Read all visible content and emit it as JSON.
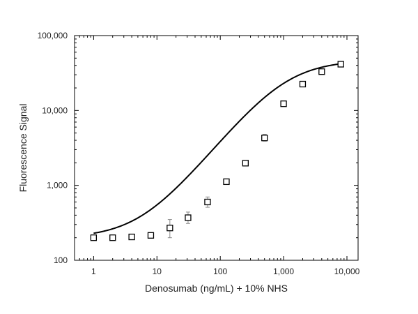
{
  "chart_data": {
    "type": "scatter",
    "title": "",
    "xlabel": "Denosumab (ng/mL) + 10% NHS",
    "ylabel": "Fluorescence Signal",
    "x_scale": "log",
    "y_scale": "log",
    "xlim": [
      0.5,
      15000
    ],
    "ylim": [
      100,
      100000
    ],
    "x_ticks": [
      1,
      10,
      100,
      1000,
      10000
    ],
    "x_tick_labels": [
      "1",
      "10",
      "100",
      "1,000",
      "10,000"
    ],
    "y_ticks": [
      100,
      1000,
      10000,
      100000
    ],
    "y_tick_labels": [
      "100",
      "1,000",
      "10,000",
      "100,000"
    ],
    "grid": false,
    "legend": "none",
    "marker": "open-square",
    "color": "#000000",
    "error_bar_color": "#888888",
    "series": [
      {
        "x": [
          1,
          2,
          4,
          8,
          16,
          31,
          63,
          125,
          250,
          500,
          1000,
          2000,
          4000,
          8000
        ],
        "y": [
          200,
          200,
          205,
          215,
          270,
          370,
          600,
          1120,
          1980,
          4300,
          12300,
          22500,
          33000,
          41500
        ],
        "y_err_low": [
          190,
          192,
          198,
          205,
          200,
          310,
          510,
          1080,
          1910,
          3900,
          11800,
          21500,
          31800,
          40000
        ],
        "y_err_high": [
          210,
          208,
          212,
          225,
          350,
          440,
          700,
          1160,
          2050,
          4800,
          12800,
          23500,
          34200,
          43000
        ]
      }
    ],
    "fit_curve": {
      "model": "4PL",
      "bottom": 198,
      "top": 47000,
      "ec50": 1050,
      "hill": 1.05
    }
  }
}
